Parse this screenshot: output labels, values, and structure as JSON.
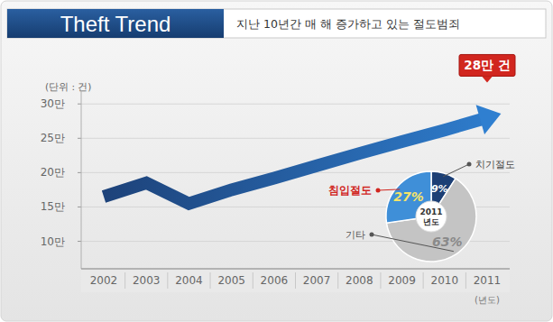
{
  "chart_data": [
    {
      "type": "line",
      "title": "Theft Trend",
      "subtitle": "지난 10년간 매 해 증가하고 있는 절도범죄",
      "y_label": "(단위 : 건)",
      "x_label": "(년도)",
      "annotations": [
        "28만 건"
      ],
      "categories": [
        "2002",
        "2003",
        "2004",
        "2005",
        "2006",
        "2007",
        "2008",
        "2009",
        "2010",
        "2011"
      ],
      "values": [
        165000,
        185000,
        155000,
        175000,
        192000,
        210000,
        228000,
        245000,
        262000,
        280000
      ],
      "color": "#1c3f75",
      "ylim": [
        60000,
        320000
      ],
      "yticks": [
        {
          "value": 100000,
          "label": "10만"
        },
        {
          "value": 150000,
          "label": "15만"
        },
        {
          "value": 200000,
          "label": "20만"
        },
        {
          "value": 250000,
          "label": "25만"
        },
        {
          "value": 300000,
          "label": "30만"
        }
      ],
      "grid": true
    },
    {
      "type": "pie",
      "title": "2011 년도",
      "categories": [
        "치기절도",
        "기타",
        "침입절도"
      ],
      "values": [
        9,
        63,
        27
      ],
      "value_labels": [
        "9%",
        "63%",
        "27%"
      ],
      "data_labels": true,
      "colors": [
        "#1c3f75",
        "#c4c4c4",
        "#3f8fd8"
      ]
    }
  ]
}
